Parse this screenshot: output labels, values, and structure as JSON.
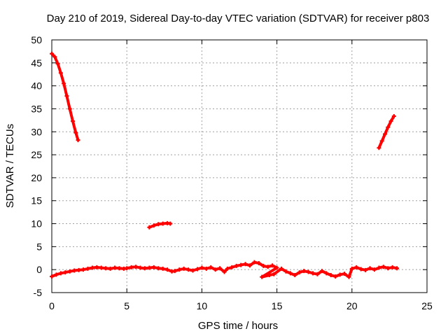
{
  "chart_data": {
    "type": "scatter",
    "title": "Day 210 of 2019, Sidereal Day-to-day VTEC variation (SDTVAR) for receiver p803",
    "xlabel": "GPS time / hours",
    "ylabel": "SDTVAR / TECUs",
    "xlim": [
      0,
      25
    ],
    "ylim": [
      -5,
      50
    ],
    "xticks": [
      0,
      5,
      10,
      15,
      20,
      25
    ],
    "yticks": [
      -5,
      0,
      5,
      10,
      15,
      20,
      25,
      30,
      35,
      40,
      45,
      50
    ],
    "grid": true,
    "legend": "none",
    "series": [
      {
        "color": "#ff0000",
        "points": [
          [
            0.0,
            47.0
          ],
          [
            0.2,
            46.3
          ],
          [
            0.4,
            44.8
          ],
          [
            0.6,
            42.8
          ],
          [
            0.8,
            40.5
          ],
          [
            1.0,
            37.8
          ],
          [
            1.2,
            35.0
          ],
          [
            1.4,
            32.3
          ],
          [
            1.6,
            29.8
          ],
          [
            1.75,
            28.2
          ]
        ]
      },
      {
        "color": "#ff0000",
        "points": [
          [
            6.5,
            9.2
          ],
          [
            6.8,
            9.6
          ],
          [
            7.1,
            9.9
          ],
          [
            7.4,
            10.0
          ],
          [
            7.7,
            10.1
          ],
          [
            7.9,
            10.0
          ]
        ]
      },
      {
        "color": "#ff0000",
        "points": [
          [
            21.8,
            26.5
          ],
          [
            22.0,
            28.0
          ],
          [
            22.2,
            29.5
          ],
          [
            22.4,
            31.0
          ],
          [
            22.6,
            32.3
          ],
          [
            22.8,
            33.4
          ]
        ]
      },
      {
        "color": "#ff0000",
        "points": [
          [
            0.0,
            -1.5
          ],
          [
            0.3,
            -1.1
          ],
          [
            0.6,
            -0.8
          ],
          [
            0.9,
            -0.6
          ],
          [
            1.2,
            -0.4
          ],
          [
            1.5,
            -0.2
          ],
          [
            1.8,
            -0.1
          ],
          [
            2.1,
            0.0
          ],
          [
            2.4,
            0.2
          ],
          [
            2.7,
            0.4
          ],
          [
            3.0,
            0.5
          ],
          [
            3.3,
            0.4
          ],
          [
            3.6,
            0.3
          ],
          [
            3.9,
            0.2
          ],
          [
            4.2,
            0.4
          ],
          [
            4.5,
            0.3
          ],
          [
            4.8,
            0.2
          ],
          [
            5.0,
            0.3
          ],
          [
            5.3,
            0.5
          ],
          [
            5.6,
            0.6
          ],
          [
            5.9,
            0.4
          ],
          [
            6.2,
            0.3
          ],
          [
            6.5,
            0.4
          ],
          [
            6.8,
            0.5
          ],
          [
            7.1,
            0.3
          ],
          [
            7.4,
            0.2
          ],
          [
            7.7,
            0.0
          ],
          [
            8.0,
            -0.4
          ],
          [
            8.2,
            -0.3
          ],
          [
            8.5,
            0.0
          ],
          [
            8.8,
            0.2
          ],
          [
            9.1,
            0.0
          ],
          [
            9.4,
            -0.2
          ],
          [
            9.7,
            0.1
          ],
          [
            10.0,
            0.4
          ],
          [
            10.3,
            0.2
          ],
          [
            10.6,
            0.5
          ],
          [
            10.9,
            0.0
          ],
          [
            11.2,
            0.3
          ],
          [
            11.5,
            -0.5
          ],
          [
            11.7,
            0.2
          ],
          [
            12.0,
            0.5
          ],
          [
            12.3,
            0.8
          ],
          [
            12.6,
            1.0
          ],
          [
            12.9,
            1.2
          ],
          [
            13.2,
            0.9
          ],
          [
            13.5,
            1.6
          ],
          [
            13.8,
            1.4
          ],
          [
            14.1,
            0.8
          ],
          [
            14.4,
            0.6
          ],
          [
            14.7,
            0.9
          ],
          [
            15.0,
            0.4
          ],
          [
            14.0,
            -1.6
          ],
          [
            14.5,
            -1.2
          ],
          [
            14.8,
            -1.0
          ],
          [
            15.3,
            0.2
          ],
          [
            15.6,
            -0.4
          ],
          [
            15.9,
            -0.8
          ],
          [
            16.2,
            -1.2
          ],
          [
            16.5,
            -0.6
          ],
          [
            16.8,
            -0.3
          ],
          [
            17.1,
            -0.5
          ],
          [
            17.4,
            -0.8
          ],
          [
            17.7,
            -1.0
          ],
          [
            18.0,
            -0.3
          ],
          [
            18.3,
            -0.8
          ],
          [
            18.6,
            -1.2
          ],
          [
            18.9,
            -1.5
          ],
          [
            19.2,
            -1.1
          ],
          [
            19.5,
            -0.9
          ],
          [
            19.8,
            -1.6
          ],
          [
            20.0,
            0.2
          ],
          [
            20.3,
            0.5
          ],
          [
            20.6,
            0.1
          ],
          [
            20.9,
            -0.1
          ],
          [
            21.2,
            0.3
          ],
          [
            21.5,
            0.0
          ],
          [
            21.8,
            0.4
          ],
          [
            22.1,
            0.6
          ],
          [
            22.4,
            0.3
          ],
          [
            22.7,
            0.5
          ],
          [
            23.0,
            0.3
          ]
        ]
      }
    ]
  }
}
